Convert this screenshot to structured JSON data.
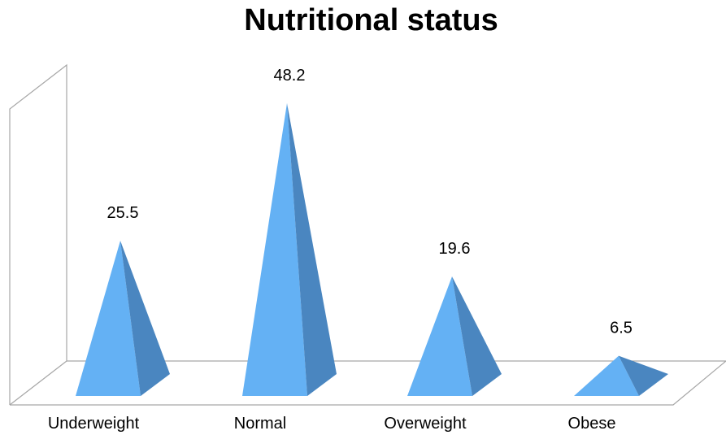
{
  "chart_data": {
    "type": "bar",
    "shape": "3d-pyramid",
    "title": "Nutritional status",
    "xlabel": "",
    "ylabel": "",
    "categories": [
      "Underweight",
      "Normal",
      "Overweight",
      "Obese"
    ],
    "values": [
      25.5,
      48.2,
      19.6,
      6.5
    ],
    "data_labels": [
      "25.5",
      "48.2",
      "19.6",
      "6.5"
    ],
    "ylim": [
      0,
      60
    ],
    "grid": false,
    "legend": "none",
    "colors": {
      "front_face": "#64B1F4",
      "side_face": "#4A86C0",
      "floor_edge": "#A6A6A6"
    }
  }
}
